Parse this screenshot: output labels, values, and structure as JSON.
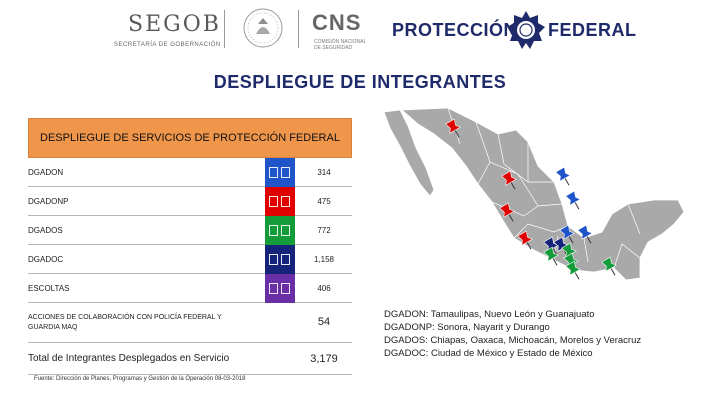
{
  "header": {
    "segob": "SEGOB",
    "segob_sub": "SECRETARÍA DE GOBERNACIÓN",
    "cns": "CNS",
    "cns_sub": "COMISIÓN NACIONAL DE SEGURIDAD",
    "pf_left": "PROTECCIÓN",
    "pf_right": "FEDERAL",
    "brand_color": "#1f2a6b"
  },
  "title": "DESPLIEGUE DE INTEGRANTES",
  "table": {
    "header": "DESPLIEGUE DE SERVICIOS DE PROTECCIÓN FEDERAL",
    "header_color": "#f0964a",
    "rows": [
      {
        "label": "DGADON",
        "value": "314",
        "color": "#1f55c9"
      },
      {
        "label": "DGADONP",
        "value": "475",
        "color": "#e00000"
      },
      {
        "label": "DGADOS",
        "value": "772",
        "color": "#149b3a"
      },
      {
        "label": "DGADOC",
        "value": "1,158",
        "color": "#16237a"
      },
      {
        "label": "ESCOLTAS",
        "value": "406",
        "color": "#6a2ea6"
      }
    ],
    "acciones": {
      "label": "ACCIONES DE COLABORACIÓN CON POLICÍA FEDERAL Y GUARDIA MAQ",
      "value": "54"
    },
    "total": {
      "label": "Total de Integrantes Desplegados en Servicio",
      "value": "3,179"
    },
    "source": "Fuente: Dirección de Planes, Programas y Gestión de la Operación 08-03-2018"
  },
  "legend": [
    "DGADON: Tamaulipas, Nuevo León y Guanajuato",
    "DGADONP: Sonora, Nayarit y Durango",
    "DGADOS: Chiapas, Oaxaca, Michoacán, Morelos y Veracruz",
    "DGADOC: Ciudad de México y Estado de México"
  ],
  "map": {
    "pins": [
      {
        "color": "#e00000",
        "icon": "pushpin-icon"
      },
      {
        "color": "#e00000",
        "icon": "pushpin-icon"
      },
      {
        "color": "#e00000",
        "icon": "pushpin-icon"
      },
      {
        "color": "#e00000",
        "icon": "pushpin-icon"
      },
      {
        "color": "#1f55c9",
        "icon": "pushpin-icon"
      },
      {
        "color": "#1f55c9",
        "icon": "pushpin-icon"
      },
      {
        "color": "#1f55c9",
        "icon": "pushpin-icon"
      },
      {
        "color": "#1f55c9",
        "icon": "pushpin-icon"
      },
      {
        "color": "#16237a",
        "icon": "pushpin-icon"
      },
      {
        "color": "#16237a",
        "icon": "pushpin-icon"
      },
      {
        "color": "#149b3a",
        "icon": "pushpin-icon"
      },
      {
        "color": "#149b3a",
        "icon": "pushpin-icon"
      },
      {
        "color": "#149b3a",
        "icon": "pushpin-icon"
      },
      {
        "color": "#149b3a",
        "icon": "pushpin-icon"
      },
      {
        "color": "#149b3a",
        "icon": "pushpin-icon"
      }
    ]
  }
}
